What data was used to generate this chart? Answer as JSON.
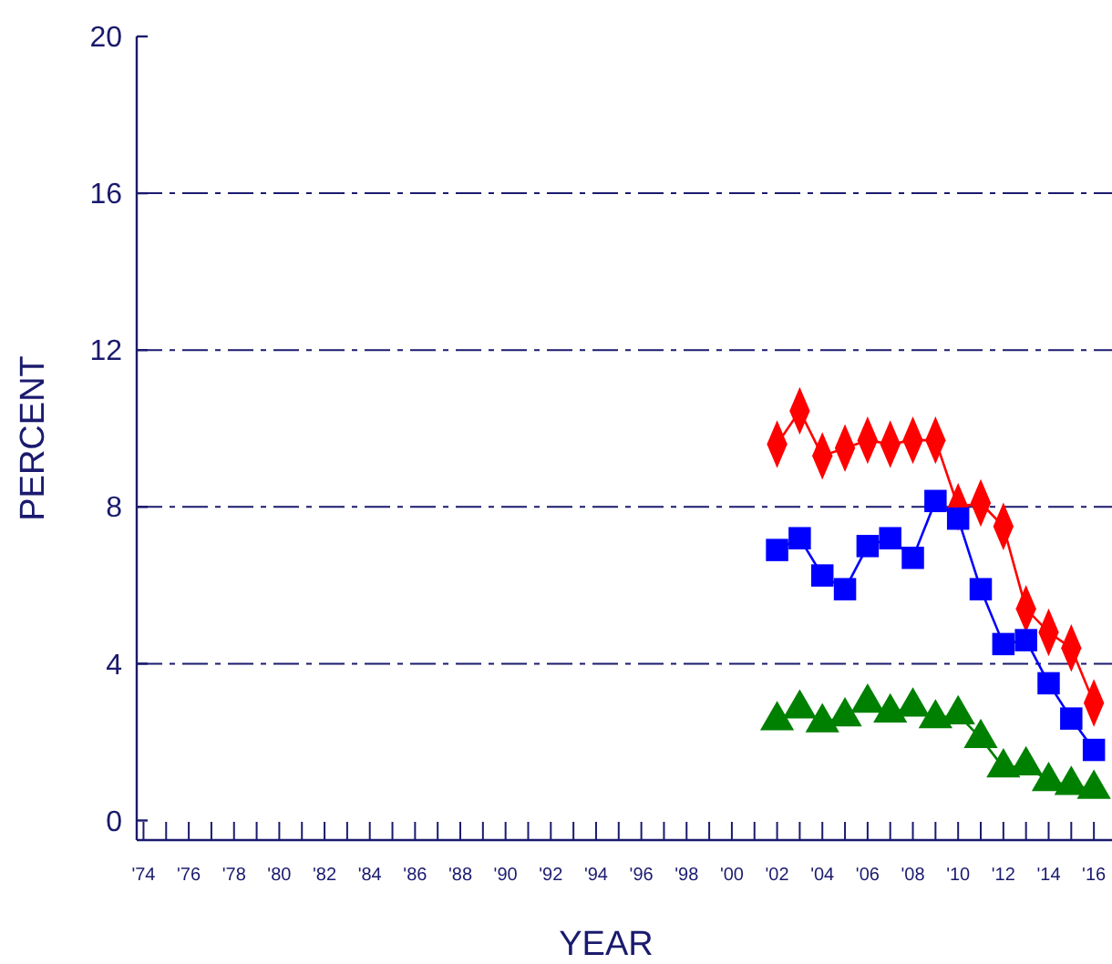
{
  "chart_data": {
    "type": "line",
    "xlabel": "YEAR",
    "ylabel": "PERCENT",
    "x": [
      2002,
      2003,
      2004,
      2005,
      2006,
      2007,
      2008,
      2009,
      2010,
      2011,
      2012,
      2013,
      2014,
      2015,
      2016
    ],
    "xlim": [
      1973.7,
      2016.8
    ],
    "ylim": [
      -0.5,
      20
    ],
    "yticks": [
      0,
      4,
      8,
      12,
      16,
      20
    ],
    "grid": "y",
    "xticks": [
      {
        "value": 1974,
        "label": "'74"
      },
      {
        "value": 1975,
        "label": null
      },
      {
        "value": 1976,
        "label": "'76"
      },
      {
        "value": 1977,
        "label": null
      },
      {
        "value": 1978,
        "label": "'78"
      },
      {
        "value": 1979,
        "label": null
      },
      {
        "value": 1980,
        "label": "'80"
      },
      {
        "value": 1981,
        "label": null
      },
      {
        "value": 1982,
        "label": "'82"
      },
      {
        "value": 1983,
        "label": null
      },
      {
        "value": 1984,
        "label": "'84"
      },
      {
        "value": 1985,
        "label": null
      },
      {
        "value": 1986,
        "label": "'86"
      },
      {
        "value": 1987,
        "label": null
      },
      {
        "value": 1988,
        "label": "'88"
      },
      {
        "value": 1989,
        "label": null
      },
      {
        "value": 1990,
        "label": "'90"
      },
      {
        "value": 1991,
        "label": null
      },
      {
        "value": 1992,
        "label": "'92"
      },
      {
        "value": 1993,
        "label": null
      },
      {
        "value": 1994,
        "label": "'94"
      },
      {
        "value": 1995,
        "label": null
      },
      {
        "value": 1996,
        "label": "'96"
      },
      {
        "value": 1997,
        "label": null
      },
      {
        "value": 1998,
        "label": "'98"
      },
      {
        "value": 1999,
        "label": null
      },
      {
        "value": 2000,
        "label": "'00"
      },
      {
        "value": 2001,
        "label": null
      },
      {
        "value": 2002,
        "label": "'02"
      },
      {
        "value": 2003,
        "label": null
      },
      {
        "value": 2004,
        "label": "'04"
      },
      {
        "value": 2005,
        "label": null
      },
      {
        "value": 2006,
        "label": "'06"
      },
      {
        "value": 2007,
        "label": null
      },
      {
        "value": 2008,
        "label": "'08"
      },
      {
        "value": 2009,
        "label": null
      },
      {
        "value": 2010,
        "label": "'10"
      },
      {
        "value": 2011,
        "label": null
      },
      {
        "value": 2012,
        "label": "'12"
      },
      {
        "value": 2013,
        "label": null
      },
      {
        "value": 2014,
        "label": "'14"
      },
      {
        "value": 2015,
        "label": null
      },
      {
        "value": 2016,
        "label": "'16"
      }
    ],
    "series": [
      {
        "color": "#ff0000",
        "marker": "diamond",
        "values": [
          9.6,
          10.45,
          9.3,
          9.5,
          9.7,
          9.6,
          9.7,
          9.7,
          8.0,
          8.1,
          7.5,
          5.4,
          4.8,
          4.4,
          3.0
        ]
      },
      {
        "color": "#0000ff",
        "marker": "square",
        "values": [
          6.9,
          7.2,
          6.25,
          5.9,
          7.0,
          7.2,
          6.7,
          8.15,
          7.7,
          5.9,
          4.5,
          4.6,
          3.5,
          2.6,
          1.8
        ]
      },
      {
        "color": "#008000",
        "marker": "triangle",
        "values": [
          2.55,
          2.85,
          2.5,
          2.65,
          3.0,
          2.75,
          2.9,
          2.6,
          2.7,
          2.1,
          1.35,
          1.4,
          1.0,
          0.9,
          0.8
        ]
      }
    ]
  }
}
